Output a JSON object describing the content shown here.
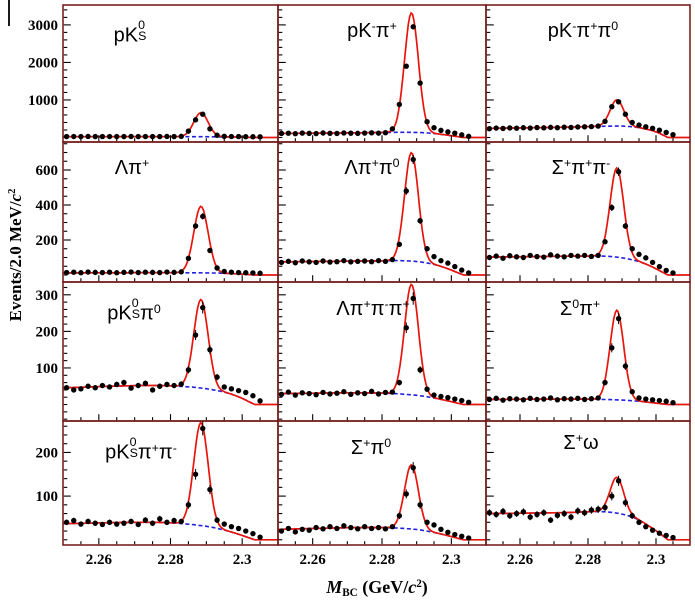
{
  "figure": {
    "x_axis_title": "M_BC (GeV/c^2)",
    "y_axis_title": "Events/2.0 MeV/c^2",
    "x_axis_title_tokens": [
      {
        "t": "M",
        "i": 1
      },
      {
        "sub": "BC"
      },
      {
        "t": " (GeV/"
      },
      {
        "t": "c",
        "i": 1
      },
      {
        "sup": "2"
      },
      {
        "t": ")"
      }
    ],
    "y_axis_title_tokens": [
      {
        "t": "Events/2.0 MeV/"
      },
      {
        "t": "c",
        "i": 1
      },
      {
        "sup": "2"
      }
    ],
    "colors": {
      "fit_curve": "#e8150d",
      "background_curve": "#2121dd",
      "marker": "#000000",
      "frame": "#701512",
      "tick": "#000000",
      "text": "#000000"
    }
  },
  "chart_data": {
    "type": "histogram-fit-grid",
    "grid": {
      "rows": 4,
      "cols": 3
    },
    "legend": {
      "points": "data",
      "red_solid": "total fit",
      "blue_dashed": "background fit"
    },
    "x": {
      "min": 2.25,
      "max": 2.31,
      "bin_start": 2.251,
      "bin_width": 0.002,
      "major_ticks": [
        2.26,
        2.28,
        2.3
      ],
      "major_tick_labels": [
        "2.26",
        "2.28",
        "2.3"
      ],
      "minor_step": 0.005
    },
    "rows": [
      {
        "y_min": -120,
        "y_max": 3530,
        "major_ticks": [
          1000,
          2000,
          3000
        ],
        "tick_labels": [
          "1000",
          "2000",
          "3000"
        ],
        "minor_step": 200
      },
      {
        "y_min": -40,
        "y_max": 760,
        "major_ticks": [
          200,
          400,
          600
        ],
        "tick_labels": [
          "200",
          "400",
          "600"
        ],
        "minor_step": 50
      },
      {
        "y_min": -45,
        "y_max": 335,
        "major_ticks": [
          100,
          200,
          300
        ],
        "tick_labels": [
          "100",
          "200",
          "300"
        ],
        "minor_step": 20
      },
      {
        "y_min": -12,
        "y_max": 272,
        "major_ticks": [
          100,
          200
        ],
        "tick_labels": [
          "100",
          "200"
        ],
        "minor_step": 20
      }
    ],
    "panels": [
      {
        "id": "pKs0",
        "label": "pK0S",
        "row": 0,
        "col": 0,
        "title_tokens": [
          {
            "t": "pK"
          },
          {
            "sup": "0",
            "sub": "S"
          }
        ],
        "values": [
          24,
          26,
          23,
          27,
          25,
          24,
          26,
          23,
          25,
          27,
          24,
          26,
          25,
          24,
          27,
          25,
          30,
          170,
          470,
          620,
          230,
          60,
          32,
          26,
          24,
          22,
          20,
          18
        ],
        "fit": {
          "amplitude": 640,
          "mean": 2.2885,
          "sigma": 0.002
        },
        "background_points": [
          [
            2.251,
            21
          ],
          [
            2.275,
            22
          ],
          [
            2.29,
            20
          ],
          [
            2.298,
            12
          ],
          [
            2.3035,
            0
          ]
        ]
      },
      {
        "id": "pKpi",
        "label": "pK-pi+",
        "row": 0,
        "col": 1,
        "title_tokens": [
          {
            "t": "pK"
          },
          {
            "sup": "-"
          },
          {
            "t": "π"
          },
          {
            "sup": "+"
          }
        ],
        "values": [
          108,
          115,
          102,
          118,
          110,
          105,
          120,
          112,
          108,
          122,
          115,
          110,
          118,
          124,
          116,
          128,
          230,
          880,
          1900,
          2950,
          1450,
          420,
          260,
          190,
          150,
          115,
          70,
          30
        ],
        "fit": {
          "amplitude": 3180,
          "mean": 2.2885,
          "sigma": 0.002
        },
        "background_points": [
          [
            2.251,
            110
          ],
          [
            2.27,
            122
          ],
          [
            2.288,
            138
          ],
          [
            2.296,
            95
          ],
          [
            2.3035,
            0
          ]
        ]
      },
      {
        "id": "pKpipi0",
        "label": "pK-pi+pi0",
        "row": 0,
        "col": 2,
        "title_tokens": [
          {
            "t": "pK"
          },
          {
            "sup": "-"
          },
          {
            "t": "π"
          },
          {
            "sup": "+"
          },
          {
            "t": "π"
          },
          {
            "sup": "0"
          }
        ],
        "values": [
          235,
          250,
          242,
          255,
          248,
          260,
          252,
          265,
          258,
          270,
          262,
          275,
          268,
          280,
          285,
          290,
          305,
          430,
          820,
          950,
          620,
          400,
          330,
          285,
          245,
          195,
          135,
          75
        ],
        "fit": {
          "amplitude": 700,
          "mean": 2.2885,
          "sigma": 0.002
        },
        "background_points": [
          [
            2.251,
            245
          ],
          [
            2.27,
            268
          ],
          [
            2.285,
            300
          ],
          [
            2.2925,
            290
          ],
          [
            2.299,
            180
          ],
          [
            2.3035,
            0
          ]
        ]
      },
      {
        "id": "Lpi",
        "label": "Lambda pi+",
        "row": 1,
        "col": 0,
        "title_tokens": [
          {
            "t": "Λπ"
          },
          {
            "sup": "+"
          }
        ],
        "values": [
          14,
          16,
          13,
          17,
          15,
          14,
          16,
          13,
          15,
          17,
          14,
          16,
          15,
          14,
          17,
          15,
          18,
          95,
          280,
          335,
          140,
          40,
          20,
          16,
          14,
          13,
          12,
          10
        ],
        "fit": {
          "amplitude": 380,
          "mean": 2.2885,
          "sigma": 0.002
        },
        "background_points": [
          [
            2.251,
            12
          ],
          [
            2.275,
            13
          ],
          [
            2.29,
            12
          ],
          [
            2.298,
            7
          ],
          [
            2.3035,
            0
          ]
        ]
      },
      {
        "id": "Lpipi0",
        "label": "Lambda pi+pi0",
        "row": 1,
        "col": 1,
        "title_tokens": [
          {
            "t": "Λπ"
          },
          {
            "sup": "+"
          },
          {
            "t": "π"
          },
          {
            "sup": "0"
          }
        ],
        "values": [
          72,
          78,
          70,
          80,
          75,
          72,
          80,
          74,
          76,
          82,
          75,
          78,
          80,
          76,
          82,
          78,
          88,
          175,
          480,
          660,
          310,
          150,
          105,
          82,
          68,
          48,
          28,
          12
        ],
        "fit": {
          "amplitude": 620,
          "mean": 2.2885,
          "sigma": 0.002
        },
        "background_points": [
          [
            2.251,
            75
          ],
          [
            2.275,
            80
          ],
          [
            2.288,
            80
          ],
          [
            2.296,
            55
          ],
          [
            2.3035,
            0
          ]
        ]
      },
      {
        "id": "Spipi",
        "label": "Sigma+pi+pi-",
        "row": 1,
        "col": 2,
        "title_tokens": [
          {
            "t": "Σ"
          },
          {
            "sup": "+"
          },
          {
            "t": "π"
          },
          {
            "sup": "+"
          },
          {
            "t": "π"
          },
          {
            "sup": "-"
          }
        ],
        "values": [
          100,
          108,
          96,
          110,
          104,
          100,
          112,
          105,
          102,
          115,
          108,
          104,
          112,
          108,
          112,
          106,
          112,
          190,
          385,
          590,
          280,
          150,
          118,
          98,
          72,
          48,
          26,
          12
        ],
        "fit": {
          "amplitude": 510,
          "mean": 2.2885,
          "sigma": 0.002
        },
        "background_points": [
          [
            2.251,
            102
          ],
          [
            2.278,
            108
          ],
          [
            2.288,
            103
          ],
          [
            2.296,
            70
          ],
          [
            2.3035,
            0
          ]
        ]
      },
      {
        "id": "pKs0pi0",
        "label": "pK0S pi0",
        "row": 2,
        "col": 0,
        "title_tokens": [
          {
            "t": "pK"
          },
          {
            "sup": "0",
            "sub": "S"
          },
          {
            "t": "π"
          },
          {
            "sup": "0"
          }
        ],
        "values": [
          46,
          40,
          43,
          50,
          46,
          52,
          48,
          55,
          60,
          45,
          52,
          58,
          40,
          50,
          55,
          52,
          56,
          95,
          190,
          265,
          150,
          75,
          48,
          43,
          38,
          33,
          24,
          10
        ],
        "fit": {
          "amplitude": 242,
          "mean": 2.2885,
          "sigma": 0.002
        },
        "background_points": [
          [
            2.251,
            46
          ],
          [
            2.272,
            52
          ],
          [
            2.284,
            49
          ],
          [
            2.292,
            40
          ],
          [
            2.298,
            25
          ],
          [
            2.3035,
            0
          ]
        ]
      },
      {
        "id": "Lpipipi",
        "label": "Lambda pi+pi-pi+",
        "row": 2,
        "col": 1,
        "title_tokens": [
          {
            "t": "Λπ"
          },
          {
            "sup": "+"
          },
          {
            "t": "π"
          },
          {
            "sup": "-"
          },
          {
            "t": "π"
          },
          {
            "sup": "+"
          }
        ],
        "values": [
          28,
          34,
          26,
          32,
          30,
          27,
          33,
          29,
          31,
          35,
          28,
          32,
          30,
          36,
          29,
          33,
          34,
          60,
          210,
          290,
          95,
          42,
          26,
          22,
          19,
          15,
          11,
          6
        ],
        "fit": {
          "amplitude": 302,
          "mean": 2.2885,
          "sigma": 0.002
        },
        "background_points": [
          [
            2.251,
            30
          ],
          [
            2.275,
            32
          ],
          [
            2.288,
            27
          ],
          [
            2.296,
            16
          ],
          [
            2.3035,
            0
          ]
        ]
      },
      {
        "id": "S0pi",
        "label": "Sigma0 pi+",
        "row": 2,
        "col": 2,
        "title_tokens": [
          {
            "t": "Σ"
          },
          {
            "sup": "0"
          },
          {
            "t": "π"
          },
          {
            "sup": "+"
          }
        ],
        "values": [
          14,
          17,
          12,
          16,
          15,
          13,
          17,
          14,
          15,
          18,
          13,
          16,
          15,
          17,
          14,
          16,
          18,
          60,
          155,
          235,
          105,
          35,
          18,
          15,
          13,
          11,
          9,
          5
        ],
        "fit": {
          "amplitude": 245,
          "mean": 2.2885,
          "sigma": 0.002
        },
        "background_points": [
          [
            2.251,
            14
          ],
          [
            2.275,
            15
          ],
          [
            2.288,
            13
          ],
          [
            2.296,
            8
          ],
          [
            2.3035,
            0
          ]
        ]
      },
      {
        "id": "pKs0pipi",
        "label": "pK0S pi+pi-",
        "row": 3,
        "col": 0,
        "title_tokens": [
          {
            "t": "pK"
          },
          {
            "sup": "0",
            "sub": "S"
          },
          {
            "t": "π"
          },
          {
            "sup": "+"
          },
          {
            "t": "π"
          },
          {
            "sup": "-"
          }
        ],
        "values": [
          40,
          44,
          36,
          42,
          38,
          35,
          40,
          36,
          38,
          42,
          35,
          45,
          38,
          48,
          40,
          44,
          42,
          80,
          150,
          255,
          115,
          45,
          36,
          30,
          26,
          20,
          14,
          6
        ],
        "fit": {
          "amplitude": 236,
          "mean": 2.2885,
          "sigma": 0.002
        },
        "background_points": [
          [
            2.251,
            37
          ],
          [
            2.275,
            40
          ],
          [
            2.288,
            33
          ],
          [
            2.296,
            20
          ],
          [
            2.3035,
            0
          ]
        ]
      },
      {
        "id": "Spi0",
        "label": "Sigma+ pi0",
        "row": 3,
        "col": 1,
        "title_tokens": [
          {
            "t": "Σ"
          },
          {
            "sup": "+"
          },
          {
            "t": "π"
          },
          {
            "sup": "0"
          }
        ],
        "values": [
          20,
          26,
          18,
          24,
          22,
          28,
          25,
          30,
          26,
          32,
          28,
          25,
          30,
          26,
          28,
          25,
          30,
          55,
          105,
          165,
          80,
          40,
          34,
          24,
          17,
          12,
          8,
          4
        ],
        "fit": {
          "amplitude": 147,
          "mean": 2.2885,
          "sigma": 0.002
        },
        "background_points": [
          [
            2.251,
            24
          ],
          [
            2.275,
            28
          ],
          [
            2.288,
            25
          ],
          [
            2.296,
            15
          ],
          [
            2.3035,
            0
          ]
        ]
      },
      {
        "id": "Somega",
        "label": "Sigma+ omega",
        "row": 3,
        "col": 2,
        "title_tokens": [
          {
            "t": "Σ"
          },
          {
            "sup": "+"
          },
          {
            "t": "ω"
          }
        ],
        "values": [
          62,
          58,
          65,
          55,
          60,
          64,
          52,
          58,
          62,
          45,
          56,
          60,
          52,
          66,
          62,
          68,
          70,
          74,
          100,
          135,
          85,
          55,
          40,
          30,
          22,
          15,
          10,
          5
        ],
        "fit": {
          "amplitude": 82,
          "mean": 2.2885,
          "sigma": 0.002
        },
        "background_points": [
          [
            2.251,
            60
          ],
          [
            2.272,
            62
          ],
          [
            2.285,
            64
          ],
          [
            2.293,
            52
          ],
          [
            2.299,
            26
          ],
          [
            2.3035,
            0
          ]
        ]
      }
    ]
  }
}
